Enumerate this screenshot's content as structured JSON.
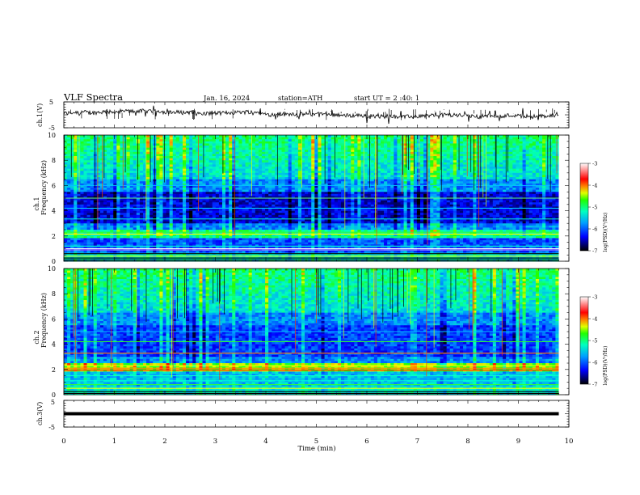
{
  "header": {
    "title": "VLF Spectra",
    "date": "Jan. 16, 2024",
    "station": "station=ATH",
    "start": "start UT =  2 :40: 1"
  },
  "chart_data": [
    {
      "type": "line",
      "panel": "ch1-waveform",
      "ylabel": "ch.1(V)",
      "ylim": [
        -5,
        5
      ],
      "yticks": [
        "5",
        "-5"
      ],
      "xlim": [
        0,
        10
      ],
      "data_end_min": 9.8,
      "note_values": "noisy waveform near +0.5 V"
    },
    {
      "type": "heatmap",
      "panel": "ch1-spectrogram",
      "ylabel_top": "ch.1",
      "ylabel": "Frequency (kHz)",
      "ylim": [
        0,
        10
      ],
      "yticks": [
        "0",
        "2",
        "4",
        "6",
        "8",
        "10"
      ],
      "xlim": [
        0,
        10
      ],
      "colorbar": {
        "label": "log(PSD)(V²/Hz)",
        "range": [
          -7,
          -3
        ],
        "ticks": [
          "-3",
          "-4",
          "-5",
          "-6",
          "-7"
        ]
      }
    },
    {
      "type": "heatmap",
      "panel": "ch2-spectrogram",
      "ylabel_top": "ch.2",
      "ylabel": "Frequency (kHz)",
      "ylim": [
        0,
        10
      ],
      "yticks": [
        "0",
        "2",
        "4",
        "6",
        "8",
        "10"
      ],
      "xlim": [
        0,
        10
      ],
      "colorbar": {
        "label": "log(PSD)(V²/Hz)",
        "range": [
          -7,
          -3
        ],
        "ticks": [
          "-3",
          "-4",
          "-5",
          "-6",
          "-7"
        ]
      }
    },
    {
      "type": "line",
      "panel": "ch3-waveform",
      "ylabel": "ch.3(V)",
      "ylim": [
        -5,
        5
      ],
      "yticks": [
        "5",
        "-5"
      ],
      "xlim": [
        0,
        10
      ],
      "xlabel": "Time (min)",
      "xticks": [
        "0",
        "1",
        "2",
        "3",
        "4",
        "5",
        "6",
        "7",
        "8",
        "9",
        "10"
      ],
      "constant_value": 0
    }
  ],
  "colors": {
    "colormap": [
      "#000000",
      "#0000b0",
      "#0000ff",
      "#0070ff",
      "#00c0ff",
      "#00ffd0",
      "#00ff60",
      "#a0ff00",
      "#ffff00",
      "#ff8000",
      "#ff0000",
      "#ffffff"
    ]
  }
}
